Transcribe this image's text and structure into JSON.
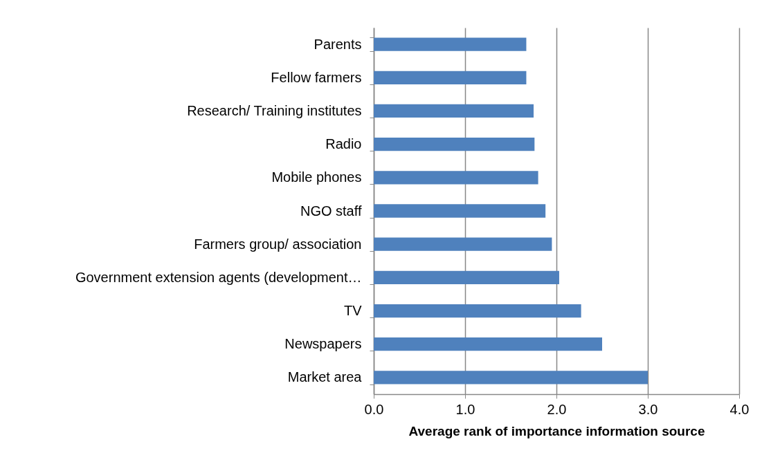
{
  "chart_data": {
    "type": "bar",
    "orientation": "horizontal",
    "xlabel": "Average rank of importance information source",
    "categories": [
      "Parents",
      "Fellow farmers",
      "Research/ Training institutes",
      "Radio",
      "Mobile phones",
      "NGO staff",
      "Farmers group/ association",
      "Government extension agents (development…",
      "TV",
      "Newspapers",
      "Market area"
    ],
    "values": [
      1.67,
      1.67,
      1.75,
      1.76,
      1.8,
      1.88,
      1.95,
      2.03,
      2.27,
      2.5,
      3.0
    ],
    "color": "#4f81bd",
    "xlim": [
      0,
      4
    ],
    "xticks": [
      {
        "value": 0,
        "label": "0.0"
      },
      {
        "value": 1,
        "label": "1.0"
      },
      {
        "value": 2,
        "label": "2.0"
      },
      {
        "value": 3,
        "label": "3.0"
      },
      {
        "value": 4,
        "label": "4.0"
      }
    ],
    "grid": "x"
  }
}
